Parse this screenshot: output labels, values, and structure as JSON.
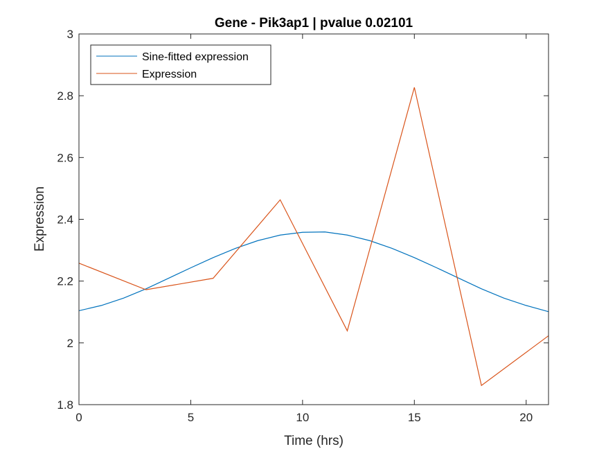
{
  "chart_data": {
    "type": "line",
    "title": "Gene - Pik3ap1 | pvalue 0.02101",
    "xlabel": "Time (hrs)",
    "ylabel": "Expression",
    "xlim": [
      0,
      21
    ],
    "ylim": [
      1.8,
      3
    ],
    "xticks": [
      0,
      5,
      10,
      15,
      20
    ],
    "xtick_labels": [
      "0",
      "5",
      "10",
      "15",
      "20"
    ],
    "yticks": [
      1.8,
      2,
      2.2,
      2.4,
      2.6,
      2.8,
      3
    ],
    "ytick_labels": [
      "1.8",
      "2",
      "2.2",
      "2.4",
      "2.6",
      "2.8",
      "3"
    ],
    "grid": false,
    "legend_position": "top-left",
    "series": [
      {
        "name": "Sine-fitted expression",
        "color": "#0072BD",
        "x": [
          0,
          1,
          2,
          3,
          4,
          5,
          6,
          7,
          8,
          9,
          10,
          11,
          12,
          13,
          14,
          15,
          16,
          17,
          18,
          19,
          20,
          21
        ],
        "y": [
          2.104,
          2.121,
          2.145,
          2.175,
          2.209,
          2.243,
          2.276,
          2.306,
          2.331,
          2.349,
          2.358,
          2.359,
          2.349,
          2.331,
          2.306,
          2.276,
          2.243,
          2.209,
          2.175,
          2.145,
          2.121,
          2.101
        ]
      },
      {
        "name": "Expression",
        "color": "#D95319",
        "x": [
          0,
          3,
          6,
          9,
          12,
          15,
          18,
          21
        ],
        "y": [
          2.258,
          2.172,
          2.209,
          2.463,
          2.039,
          2.827,
          1.862,
          2.023
        ]
      }
    ]
  }
}
